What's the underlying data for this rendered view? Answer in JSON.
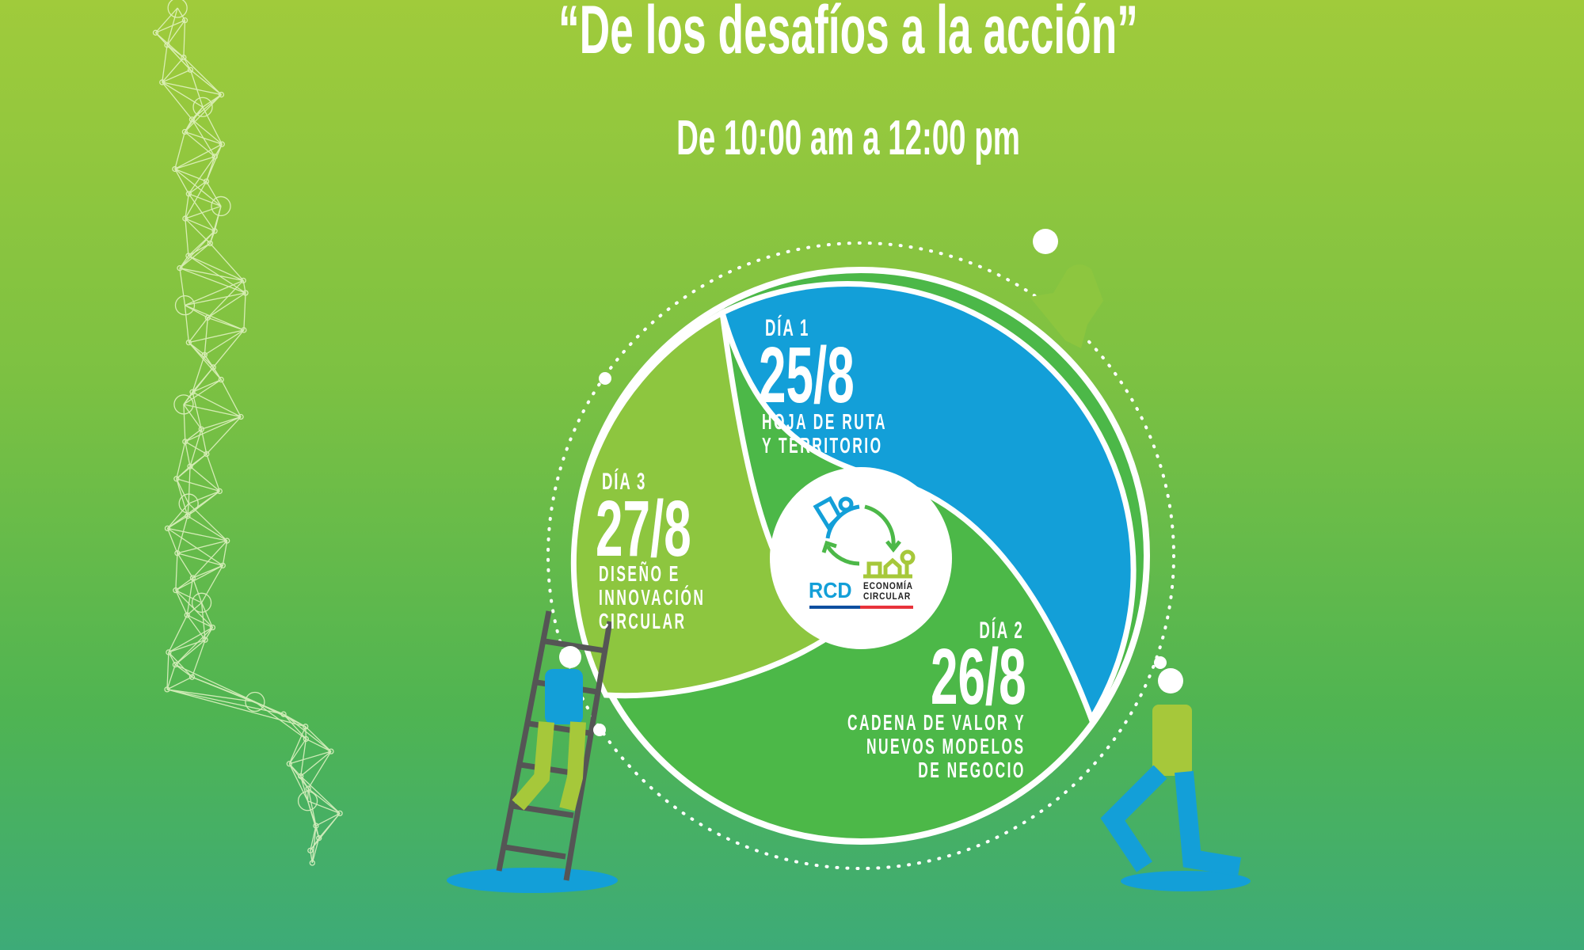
{
  "header": {
    "title": "“De los desafíos a la acción”",
    "time": "De 10:00 am a 12:00 pm"
  },
  "days": [
    {
      "label": "DÍA 1",
      "date": "25/8",
      "desc": [
        "HOJA DE RUTA",
        "Y TERRITORIO"
      ],
      "color": "#139fd8"
    },
    {
      "label": "DÍA 2",
      "date": "26/8",
      "desc": [
        "CADENA DE VALOR Y",
        "NUEVOS MODELOS",
        "DE NEGOCIO"
      ],
      "color": "#4cb848"
    },
    {
      "label": "DÍA 3",
      "date": "27/8",
      "desc": [
        "DISEÑO E",
        "INNOVACIÓN",
        "CIRCULAR"
      ],
      "color": "#8dc63f"
    }
  ],
  "logo": {
    "brand": "RCD",
    "subtitle": "ECONOMÍA CIRCULAR",
    "colors": {
      "blue": "#139fd8",
      "green": "#4cb848",
      "lime": "#a6c83a",
      "red": "#e8333b",
      "navy": "#0d4fa0"
    }
  }
}
